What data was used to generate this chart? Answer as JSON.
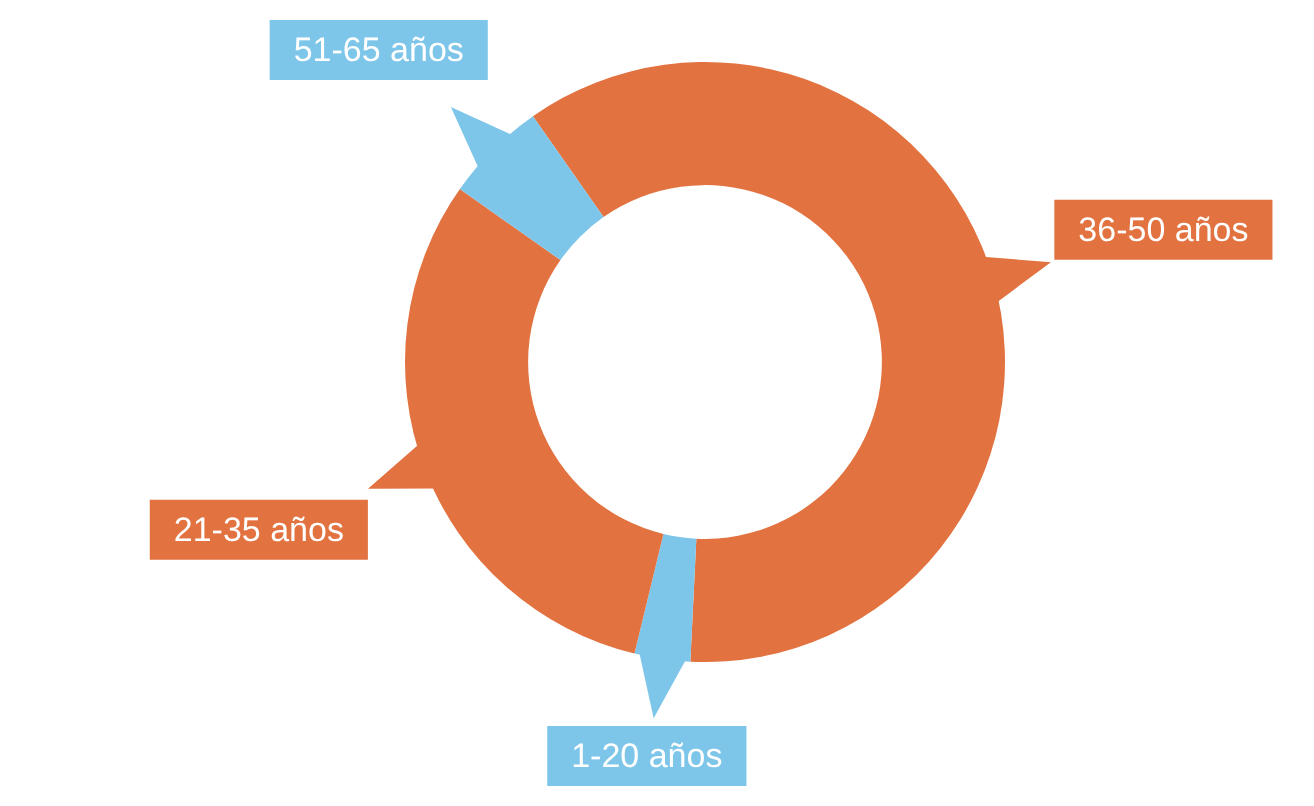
{
  "chart_data": {
    "type": "donut",
    "categories": [
      "36-50 años",
      "1-20 años",
      "21-35 años",
      "51-65 años"
    ],
    "values": [
      60.5,
      3,
      31,
      5.5
    ],
    "colors": [
      "#e2723f",
      "#7ec6e9",
      "#e2723f",
      "#7ec6e9"
    ]
  }
}
